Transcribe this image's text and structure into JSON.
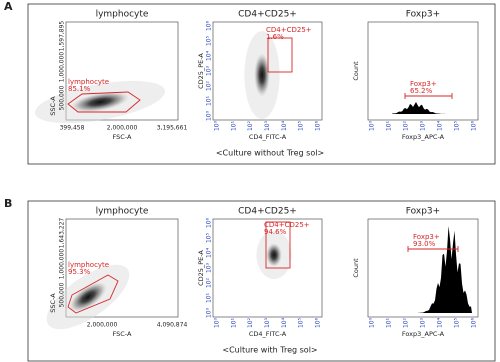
{
  "panels": [
    {
      "label": "A",
      "caption": "<Culture without Treg sol>",
      "plots": [
        {
          "title": "lymphocyte",
          "x_label": "FSC-A",
          "y_label": "SSC-A",
          "x_ticks": [
            "399,458",
            "2,000,000",
            "3,195,661"
          ],
          "y_ticks": [
            "500,000",
            "1,000,000",
            "1,597,895"
          ],
          "gate_name": "lymphocyte",
          "gate_value": "85.1%"
        },
        {
          "title": "CD4+CD25+",
          "x_label": "CD4_FITC-A",
          "y_label": "CD25_PE-A",
          "x_ticks": [
            "10⁰",
            "10¹",
            "10²",
            "10³",
            "10⁴",
            "10⁵",
            "10⁶"
          ],
          "y_ticks": [
            "10⁰",
            "10¹",
            "10²",
            "10³",
            "10⁴",
            "10⁵",
            "10⁶"
          ],
          "gate_name": "CD4+CD25+",
          "gate_value": "1.6%"
        },
        {
          "title": "Foxp3+",
          "x_label": "Foxp3_APC-A",
          "y_label": "Count",
          "x_ticks": [
            "10⁰",
            "10¹",
            "10²",
            "10³",
            "10⁴",
            "10⁵",
            "10⁶"
          ],
          "y_ticks": [],
          "gate_name": "Foxp3+",
          "gate_value": "65.2%"
        }
      ]
    },
    {
      "label": "B",
      "caption": "<Culture with Treg sol>",
      "plots": [
        {
          "title": "lymphocyte",
          "x_label": "FSC-A",
          "y_label": "SSC-A",
          "x_ticks": [
            "2,000,000",
            "4,090,874"
          ],
          "y_ticks": [
            "500,000",
            "1,000,000",
            "1,643,227"
          ],
          "gate_name": "lymphocyte",
          "gate_value": "95.3%"
        },
        {
          "title": "CD4+CD25+",
          "x_label": "CD4_FITC-A",
          "y_label": "CD25_PE-A",
          "x_ticks": [
            "10⁰",
            "10¹",
            "10²",
            "10³",
            "10⁴",
            "10⁵",
            "10⁶"
          ],
          "y_ticks": [
            "10⁰",
            "10¹",
            "10²",
            "10³",
            "10⁴",
            "10⁵",
            "10⁶"
          ],
          "gate_name": "CD4+CD25+",
          "gate_value": "94.6%"
        },
        {
          "title": "Foxp3+",
          "x_label": "Foxp3_APC-A",
          "y_label": "Count",
          "x_ticks": [
            "10⁰",
            "10¹",
            "10²",
            "10³",
            "10⁴",
            "10⁵",
            "10⁶"
          ],
          "y_ticks": [],
          "gate_name": "Foxp3+",
          "gate_value": "93.0%"
        }
      ]
    }
  ]
}
